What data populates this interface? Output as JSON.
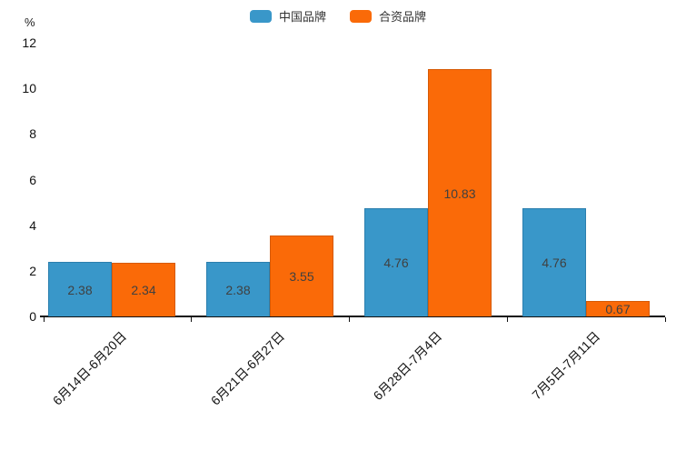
{
  "chart_data": {
    "type": "bar",
    "title": "",
    "categories": [
      "6月14日-6月20日",
      "6月21日-6月27日",
      "6月28日-7月4日",
      "7月5日-7月11日"
    ],
    "series": [
      {
        "name": "中国品牌",
        "color": "#3997C9",
        "border_color": "#2b7fae",
        "values": [
          2.38,
          2.38,
          4.76,
          4.76
        ]
      },
      {
        "name": "合资品牌",
        "color": "#FA6A08",
        "border_color": "#d65a05",
        "values": [
          2.34,
          3.55,
          10.83,
          0.67
        ]
      }
    ],
    "xlabel": "",
    "ylabel": "%",
    "ylim": [
      0,
      12
    ],
    "yticks": [
      0,
      2,
      4,
      6,
      8,
      10,
      12
    ],
    "legend_position": "top",
    "grid": false,
    "value_labels": "inside-center",
    "x_label_rotation_deg": 45
  }
}
